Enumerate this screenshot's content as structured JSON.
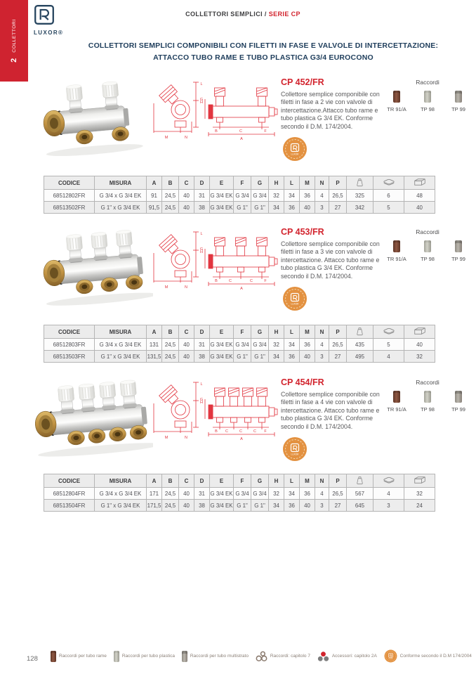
{
  "brand": {
    "logo_text": "LUXOR®",
    "badge_text": "LUXOR"
  },
  "sidebar": {
    "chapter_number": "2",
    "chapter_label": "COLLETTORI"
  },
  "header": {
    "breadcrumb_plain": "COLLETTORI SEMPLICI /",
    "breadcrumb_series": "SERIE CP"
  },
  "title": {
    "line1": "COLLETTORI SEMPLICI COMPONIBILI CON FILETTI IN FASE E VALVOLE DI INTERCETTAZIONE:",
    "line2": "ATTACCO TUBO RAME E TUBO PLASTICA G3/4 EUROCONO"
  },
  "raccordi_title": "Raccordi",
  "drawing_labels": {
    "m": "M",
    "n": "N",
    "l": "L",
    "h": "H",
    "g": "G",
    "a": "A",
    "b": "B",
    "c": "C",
    "f": "F"
  },
  "table_headers": [
    "CODICE",
    "MISURA",
    "A",
    "B",
    "C",
    "D",
    "E",
    "F",
    "G",
    "H",
    "L",
    "M",
    "N",
    "P"
  ],
  "table_icon_headers": [
    "weight-icon",
    "stack-icon",
    "box-icon"
  ],
  "products": [
    {
      "code": "CP 452/FR",
      "ways": 2,
      "description": "Collettore semplice componibile con filetti in fase a 2 vie con valvole di intercettazione.Attacco tubo rame e tubo plastica G 3/4 EK. Conforme secondo il D.M. 174/2004.",
      "raccordi": [
        {
          "label": "TR 91/A",
          "type": "copper"
        },
        {
          "label": "TP 98",
          "type": "plastic"
        },
        {
          "label": "TP 99",
          "type": "multilayer"
        }
      ],
      "rows": [
        [
          "68512802FR",
          "G 3/4 x G 3/4 EK",
          "91",
          "24,5",
          "40",
          "31",
          "G 3/4 EK",
          "G 3/4",
          "G 3/4",
          "32",
          "34",
          "36",
          "4",
          "26,5",
          "325",
          "6",
          "48"
        ],
        [
          "68513502FR",
          "G 1\" x G 3/4 EK",
          "91,5",
          "24,5",
          "40",
          "38",
          "G 3/4 EK",
          "G 1\"",
          "G 1\"",
          "34",
          "36",
          "40",
          "3",
          "27",
          "342",
          "5",
          "40"
        ]
      ]
    },
    {
      "code": "CP 453/FR",
      "ways": 3,
      "description": "Collettore semplice componibile con filetti in fase a 3 vie con valvole di intercettazione. Attacco tubo rame e tubo plastica G 3/4 EK. Conforme secondo il D.M. 174/2004.",
      "raccordi": [
        {
          "label": "TR 91/A",
          "type": "copper"
        },
        {
          "label": "TP 98",
          "type": "plastic"
        },
        {
          "label": "TP 99",
          "type": "multilayer"
        }
      ],
      "rows": [
        [
          "68512803FR",
          "G 3/4 x G 3/4 EK",
          "131",
          "24,5",
          "40",
          "31",
          "G 3/4 EK",
          "G 3/4",
          "G 3/4",
          "32",
          "34",
          "36",
          "4",
          "26,5",
          "435",
          "5",
          "40"
        ],
        [
          "68513503FR",
          "G 1\" x G 3/4 EK",
          "131,5",
          "24,5",
          "40",
          "38",
          "G 3/4 EK",
          "G 1\"",
          "G 1\"",
          "34",
          "36",
          "40",
          "3",
          "27",
          "495",
          "4",
          "32"
        ]
      ]
    },
    {
      "code": "CP 454/FR",
      "ways": 4,
      "description": "Collettore semplice componibile con filetti in fase a 4 vie con valvole di intercettazione. Attacco tubo rame e tubo plastica G 3/4 EK. Conforme secondo il D.M. 174/2004.",
      "raccordi": [
        {
          "label": "TR 91/A",
          "type": "copper"
        },
        {
          "label": "TP 98",
          "type": "plastic"
        },
        {
          "label": "TP 99",
          "type": "multilayer"
        }
      ],
      "rows": [
        [
          "68512804FR",
          "G 3/4 x G 3/4 EK",
          "171",
          "24,5",
          "40",
          "31",
          "G 3/4 EK",
          "G 3/4",
          "G 3/4",
          "32",
          "34",
          "36",
          "4",
          "26,5",
          "567",
          "4",
          "32"
        ],
        [
          "68513504FR",
          "G 1\" x G 3/4 EK",
          "171,5",
          "24,5",
          "40",
          "38",
          "G 3/4 EK",
          "G 1\"",
          "G 1\"",
          "34",
          "36",
          "40",
          "3",
          "27",
          "645",
          "3",
          "24"
        ]
      ]
    }
  ],
  "footer": {
    "page_number": "128",
    "legend": [
      {
        "icon": "copper-fitting-icon",
        "label": "Raccordi per tubo rame"
      },
      {
        "icon": "plastic-fitting-icon",
        "label": "Raccordi per tubo plastica"
      },
      {
        "icon": "multilayer-fitting-icon",
        "label": "Raccordi per tubo multistrato"
      },
      {
        "icon": "rings-icon",
        "label": "Raccordi: capitolo 7"
      },
      {
        "icon": "dots-icon",
        "label": "Accessori: capitolo 2A"
      },
      {
        "icon": "conformity-badge-icon",
        "label": "Conforme secondo il D.M 174/2004"
      }
    ]
  },
  "colors": {
    "accent_red": "#d2232d",
    "navy": "#1e3d5b",
    "badge_orange": "#e39140",
    "drawing_red": "#e23640"
  }
}
